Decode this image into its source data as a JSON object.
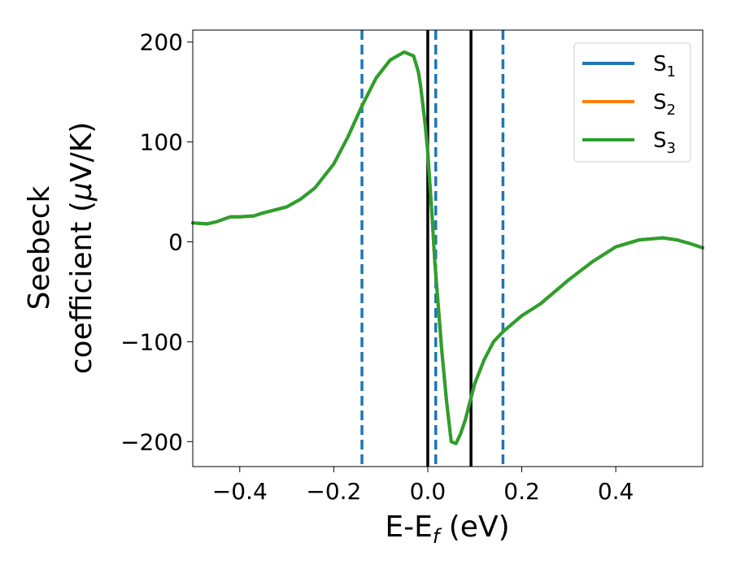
{
  "chart_data": {
    "type": "line",
    "xlabel_main": "E-E",
    "xlabel_sub": "f",
    "xlabel_tail": " (eV)",
    "ylabel_line1": "Seebeck",
    "ylabel_line2": "coefficient  (",
    "ylabel_mu": "μ",
    "ylabel_tail": "V/K)",
    "xlim": [
      -0.5,
      0.585
    ],
    "ylim": [
      -225,
      212
    ],
    "xticks": [
      -0.4,
      -0.2,
      0.0,
      0.2,
      0.4
    ],
    "xtick_labels": [
      "−0.4",
      "−0.2",
      "0.0",
      "0.2",
      "0.4"
    ],
    "yticks": [
      -200,
      -100,
      0,
      100,
      200
    ],
    "ytick_labels": [
      "−200",
      "−100",
      "0",
      "100",
      "200"
    ],
    "legend_position": "top-right",
    "x": [
      -0.5,
      -0.47,
      -0.45,
      -0.42,
      -0.4,
      -0.37,
      -0.35,
      -0.3,
      -0.27,
      -0.24,
      -0.2,
      -0.17,
      -0.14,
      -0.11,
      -0.08,
      -0.05,
      -0.03,
      -0.02,
      -0.015,
      -0.01,
      -0.005,
      0.0,
      0.005,
      0.01,
      0.015,
      0.02,
      0.03,
      0.04,
      0.05,
      0.06,
      0.07,
      0.08,
      0.09,
      0.1,
      0.12,
      0.14,
      0.16,
      0.2,
      0.24,
      0.3,
      0.35,
      0.4,
      0.45,
      0.5,
      0.53,
      0.56,
      0.585
    ],
    "series": [
      {
        "name_main": "S",
        "name_sub": "1",
        "color": "#1f77b4",
        "values": [
          19,
          18,
          20,
          25,
          25,
          26,
          29,
          35,
          43,
          54,
          78,
          105,
          136,
          164,
          182,
          190,
          186,
          170,
          155,
          135,
          115,
          90,
          55,
          20,
          -20,
          -50,
          -110,
          -160,
          -200,
          -202,
          -192,
          -178,
          -160,
          -142,
          -118,
          -100,
          -90,
          -74,
          -62,
          -38,
          -20,
          -5,
          2,
          4,
          2,
          -2,
          -6
        ]
      },
      {
        "name_main": "S",
        "name_sub": "2",
        "color": "#ff7f0e",
        "values": [
          19,
          18,
          20,
          25,
          25,
          26,
          29,
          35,
          43,
          54,
          78,
          105,
          136,
          164,
          182,
          190,
          186,
          170,
          155,
          135,
          115,
          90,
          55,
          20,
          -20,
          -50,
          -110,
          -160,
          -200,
          -202,
          -192,
          -178,
          -160,
          -142,
          -118,
          -100,
          -90,
          -74,
          -62,
          -38,
          -20,
          -5,
          2,
          4,
          2,
          -2,
          -6
        ]
      },
      {
        "name_main": "S",
        "name_sub": "3",
        "color": "#2ca02c",
        "values": [
          19,
          18,
          20,
          25,
          25,
          26,
          29,
          35,
          43,
          54,
          78,
          105,
          136,
          164,
          182,
          190,
          186,
          170,
          155,
          135,
          115,
          90,
          55,
          20,
          -20,
          -50,
          -110,
          -160,
          -200,
          -202,
          -192,
          -178,
          -160,
          -142,
          -118,
          -100,
          -90,
          -74,
          -62,
          -38,
          -20,
          -5,
          2,
          4,
          2,
          -2,
          -6
        ]
      }
    ],
    "vlines": [
      {
        "x": -0.14,
        "style": "dashed",
        "color": "#1f77b4"
      },
      {
        "x": 0.0,
        "style": "solid",
        "color": "#000000"
      },
      {
        "x": 0.017,
        "style": "dashed",
        "color": "#1f77b4"
      },
      {
        "x": 0.092,
        "style": "solid",
        "color": "#000000"
      },
      {
        "x": 0.16,
        "style": "dashed",
        "color": "#1f77b4"
      }
    ]
  }
}
